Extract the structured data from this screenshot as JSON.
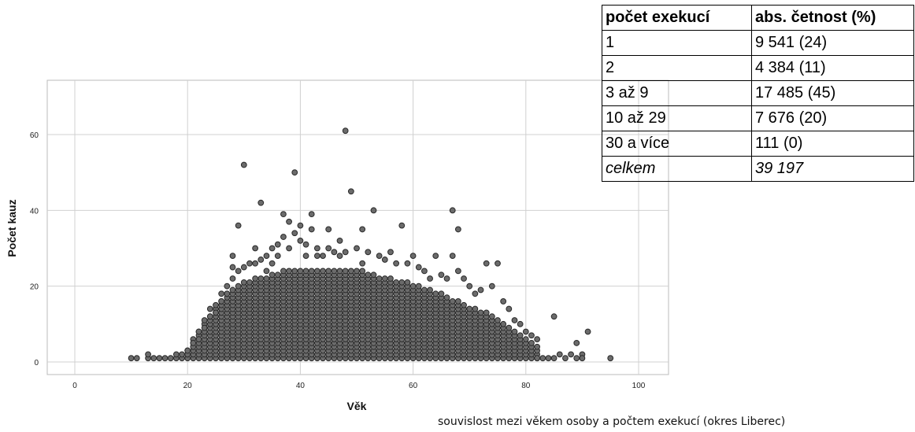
{
  "chart_data": {
    "type": "scatter",
    "xlabel": "Věk",
    "ylabel": "Počet kauz",
    "xlim": [
      -5,
      105
    ],
    "ylim": [
      -2,
      73
    ],
    "xticks": [
      0,
      20,
      40,
      60,
      80,
      100
    ],
    "yticks": [
      0,
      20,
      40,
      60
    ],
    "grid": true,
    "points": [
      [
        10,
        1
      ],
      [
        11,
        1
      ],
      [
        13,
        1
      ],
      [
        13,
        2
      ],
      [
        14,
        1
      ],
      [
        15,
        1
      ],
      [
        16,
        1
      ],
      [
        17,
        1
      ],
      [
        18,
        1
      ],
      [
        18,
        2
      ],
      [
        19,
        1
      ],
      [
        19,
        2
      ],
      [
        20,
        2
      ],
      [
        20,
        3
      ],
      [
        21,
        4
      ],
      [
        21,
        5
      ],
      [
        22,
        6
      ],
      [
        22,
        8
      ],
      [
        23,
        9
      ],
      [
        23,
        11
      ],
      [
        24,
        12
      ],
      [
        24,
        14
      ],
      [
        25,
        13
      ],
      [
        25,
        15
      ],
      [
        26,
        16
      ],
      [
        26,
        18
      ],
      [
        27,
        18
      ],
      [
        27,
        20
      ],
      [
        28,
        22
      ],
      [
        28,
        25
      ],
      [
        28,
        28
      ],
      [
        29,
        24
      ],
      [
        29,
        36
      ],
      [
        30,
        25
      ],
      [
        30,
        52
      ],
      [
        31,
        26
      ],
      [
        32,
        26
      ],
      [
        32,
        30
      ],
      [
        33,
        27
      ],
      [
        33,
        42
      ],
      [
        34,
        28
      ],
      [
        34,
        24
      ],
      [
        35,
        30
      ],
      [
        35,
        26
      ],
      [
        36,
        31
      ],
      [
        36,
        28
      ],
      [
        37,
        39
      ],
      [
        37,
        33
      ],
      [
        38,
        37
      ],
      [
        38,
        30
      ],
      [
        39,
        34
      ],
      [
        39,
        50
      ],
      [
        40,
        36
      ],
      [
        40,
        32
      ],
      [
        41,
        31
      ],
      [
        41,
        28
      ],
      [
        42,
        39
      ],
      [
        42,
        35
      ],
      [
        43,
        30
      ],
      [
        43,
        28
      ],
      [
        44,
        28
      ],
      [
        45,
        35
      ],
      [
        45,
        30
      ],
      [
        46,
        29
      ],
      [
        47,
        28
      ],
      [
        47,
        32
      ],
      [
        48,
        61
      ],
      [
        48,
        29
      ],
      [
        49,
        45
      ],
      [
        50,
        30
      ],
      [
        51,
        26
      ],
      [
        51,
        35
      ],
      [
        52,
        29
      ],
      [
        53,
        40
      ],
      [
        54,
        28
      ],
      [
        55,
        27
      ],
      [
        56,
        29
      ],
      [
        57,
        26
      ],
      [
        58,
        36
      ],
      [
        59,
        26
      ],
      [
        60,
        28
      ],
      [
        61,
        25
      ],
      [
        62,
        24
      ],
      [
        63,
        22
      ],
      [
        64,
        28
      ],
      [
        65,
        23
      ],
      [
        66,
        22
      ],
      [
        67,
        40
      ],
      [
        67,
        28
      ],
      [
        68,
        35
      ],
      [
        68,
        24
      ],
      [
        69,
        22
      ],
      [
        70,
        20
      ],
      [
        71,
        18
      ],
      [
        72,
        19
      ],
      [
        73,
        26
      ],
      [
        74,
        20
      ],
      [
        75,
        26
      ],
      [
        76,
        16
      ],
      [
        77,
        14
      ],
      [
        78,
        11
      ],
      [
        79,
        10
      ],
      [
        80,
        8
      ],
      [
        81,
        7
      ],
      [
        82,
        6
      ],
      [
        82,
        1
      ],
      [
        83,
        1
      ],
      [
        84,
        1
      ],
      [
        85,
        12
      ],
      [
        85,
        1
      ],
      [
        86,
        2
      ],
      [
        87,
        1
      ],
      [
        88,
        2
      ],
      [
        89,
        1
      ],
      [
        89,
        5
      ],
      [
        90,
        2
      ],
      [
        90,
        1
      ],
      [
        91,
        8
      ],
      [
        95,
        1
      ]
    ],
    "dense_region": {
      "x_range": [
        20,
        82
      ],
      "upper_profile": [
        [
          20,
          3
        ],
        [
          22,
          8
        ],
        [
          24,
          12
        ],
        [
          26,
          16
        ],
        [
          28,
          19
        ],
        [
          30,
          21
        ],
        [
          34,
          22
        ],
        [
          38,
          24
        ],
        [
          42,
          24
        ],
        [
          46,
          24
        ],
        [
          50,
          24
        ],
        [
          54,
          22
        ],
        [
          58,
          21
        ],
        [
          62,
          19
        ],
        [
          66,
          17
        ],
        [
          70,
          14
        ],
        [
          74,
          12
        ],
        [
          78,
          8
        ],
        [
          82,
          4
        ]
      ]
    },
    "table": {
      "headers": [
        "počet exekucí",
        "abs. četnost (%)"
      ],
      "rows": [
        [
          "1",
          "9 541 (24)"
        ],
        [
          "2",
          "4 384 (11)"
        ],
        [
          "3 až 9",
          "17 485 (45)"
        ],
        [
          "10 až 29",
          "7 676 (20)"
        ],
        [
          "30 a více",
          "111 (0)"
        ]
      ],
      "total": [
        "celkem",
        "39 197"
      ]
    }
  },
  "caption": "souvislost mezi věkem osoby a počtem exekucí (okres Liberec)"
}
